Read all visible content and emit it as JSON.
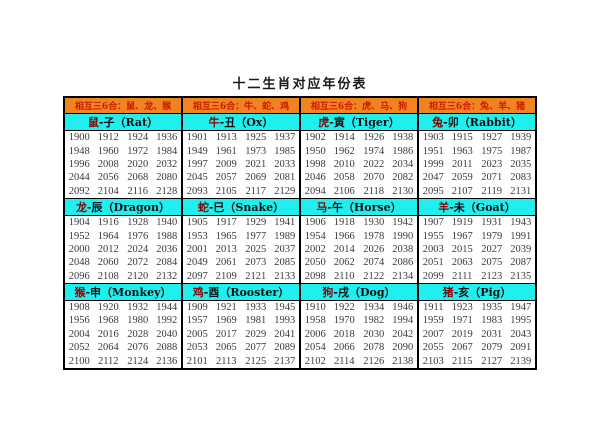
{
  "title": "十二生肖对应年份表",
  "colors": {
    "trine_header_bg": "#F28322",
    "trine_header_text": "#C81E00",
    "zodiac_header_bg": "#1FEFEF",
    "zodiac_animal_text": "#8B0000",
    "zodiac_header_text": "#101010",
    "year_text": "#3A3A3A",
    "table_border": "#000000",
    "page_bg": "#FFFFFF"
  },
  "trine_headers": [
    "相互三6合：鼠、龙、猴",
    "相互三6合：牛、蛇、鸡",
    "相互三6合：虎、马、狗",
    "相互三6合：兔、羊、猪"
  ],
  "zodiac_groups": [
    {
      "animal": "鼠",
      "rest": "-子（Rat）",
      "english": "Rat",
      "years": [
        [
          1900,
          1912,
          1924,
          1936
        ],
        [
          1948,
          1960,
          1972,
          1984
        ],
        [
          1996,
          2008,
          2020,
          2032
        ],
        [
          2044,
          2056,
          2068,
          2080
        ],
        [
          2092,
          2104,
          2116,
          2128
        ]
      ]
    },
    {
      "animal": "牛",
      "rest": "-丑（Ox）",
      "english": "Ox",
      "years": [
        [
          1901,
          1913,
          1925,
          1937
        ],
        [
          1949,
          1961,
          1973,
          1985
        ],
        [
          1997,
          2009,
          2021,
          2033
        ],
        [
          2045,
          2057,
          2069,
          2081
        ],
        [
          2093,
          2105,
          2117,
          2129
        ]
      ]
    },
    {
      "animal": "虎",
      "rest": "-寅（Tiger）",
      "english": "Tiger",
      "years": [
        [
          1902,
          1914,
          1926,
          1938
        ],
        [
          1950,
          1962,
          1974,
          1986
        ],
        [
          1998,
          2010,
          2022,
          2034
        ],
        [
          2046,
          2058,
          2070,
          2082
        ],
        [
          2094,
          2106,
          2118,
          2130
        ]
      ]
    },
    {
      "animal": "兔",
      "rest": "-卯（Rabbit）",
      "english": "Rabbit",
      "years": [
        [
          1903,
          1915,
          1927,
          1939
        ],
        [
          1951,
          1963,
          1975,
          1987
        ],
        [
          1999,
          2011,
          2023,
          2035
        ],
        [
          2047,
          2059,
          2071,
          2083
        ],
        [
          2095,
          2107,
          2119,
          2131
        ]
      ]
    },
    {
      "animal": "龙",
      "rest": "-辰（Dragon）",
      "english": "Dragon",
      "years": [
        [
          1904,
          1916,
          1928,
          1940
        ],
        [
          1952,
          1964,
          1976,
          1988
        ],
        [
          2000,
          2012,
          2024,
          2036
        ],
        [
          2048,
          2060,
          2072,
          2084
        ],
        [
          2096,
          2108,
          2120,
          2132
        ]
      ]
    },
    {
      "animal": "蛇",
      "rest": "-巳（Snake）",
      "english": "Snake",
      "years": [
        [
          1905,
          1917,
          1929,
          1941
        ],
        [
          1953,
          1965,
          1977,
          1989
        ],
        [
          2001,
          2013,
          2025,
          2037
        ],
        [
          2049,
          2061,
          2073,
          2085
        ],
        [
          2097,
          2109,
          2121,
          2133
        ]
      ]
    },
    {
      "animal": "马",
      "rest": "-午（Horse）",
      "english": "Horse",
      "years": [
        [
          1906,
          1918,
          1930,
          1942
        ],
        [
          1954,
          1966,
          1978,
          1990
        ],
        [
          2002,
          2014,
          2026,
          2038
        ],
        [
          2050,
          2062,
          2074,
          2086
        ],
        [
          2098,
          2110,
          2122,
          2134
        ]
      ]
    },
    {
      "animal": "羊",
      "rest": "-未（Goat）",
      "english": "Goat",
      "years": [
        [
          1907,
          1919,
          1931,
          1943
        ],
        [
          1955,
          1967,
          1979,
          1991
        ],
        [
          2003,
          2015,
          2027,
          2039
        ],
        [
          2051,
          2063,
          2075,
          2087
        ],
        [
          2099,
          2111,
          2123,
          2135
        ]
      ]
    },
    {
      "animal": "猴",
      "rest": "-申（Monkey）",
      "english": "Monkey",
      "years": [
        [
          1908,
          1920,
          1932,
          1944
        ],
        [
          1956,
          1968,
          1980,
          1992
        ],
        [
          2004,
          2016,
          2028,
          2040
        ],
        [
          2052,
          2064,
          2076,
          2088
        ],
        [
          2100,
          2112,
          2124,
          2136
        ]
      ]
    },
    {
      "animal": "鸡",
      "rest": "-酉（Rooster）",
      "english": "Rooster",
      "years": [
        [
          1909,
          1921,
          1933,
          1945
        ],
        [
          1957,
          1969,
          1981,
          1993
        ],
        [
          2005,
          2017,
          2029,
          2041
        ],
        [
          2053,
          2065,
          2077,
          2089
        ],
        [
          2101,
          2113,
          2125,
          2137
        ]
      ]
    },
    {
      "animal": "狗",
      "rest": "-戌（Dog）",
      "english": "Dog",
      "years": [
        [
          1910,
          1922,
          1934,
          1946
        ],
        [
          1958,
          1970,
          1982,
          1994
        ],
        [
          2006,
          2018,
          2030,
          2042
        ],
        [
          2054,
          2066,
          2078,
          2090
        ],
        [
          2102,
          2114,
          2126,
          2138
        ]
      ]
    },
    {
      "animal": "猪",
      "rest": "-亥（Pig）",
      "english": "Pig",
      "years": [
        [
          1911,
          1923,
          1935,
          1947
        ],
        [
          1959,
          1971,
          1983,
          1995
        ],
        [
          2007,
          2019,
          2031,
          2043
        ],
        [
          2055,
          2067,
          2079,
          2091
        ],
        [
          2103,
          2115,
          2127,
          2139
        ]
      ]
    }
  ]
}
